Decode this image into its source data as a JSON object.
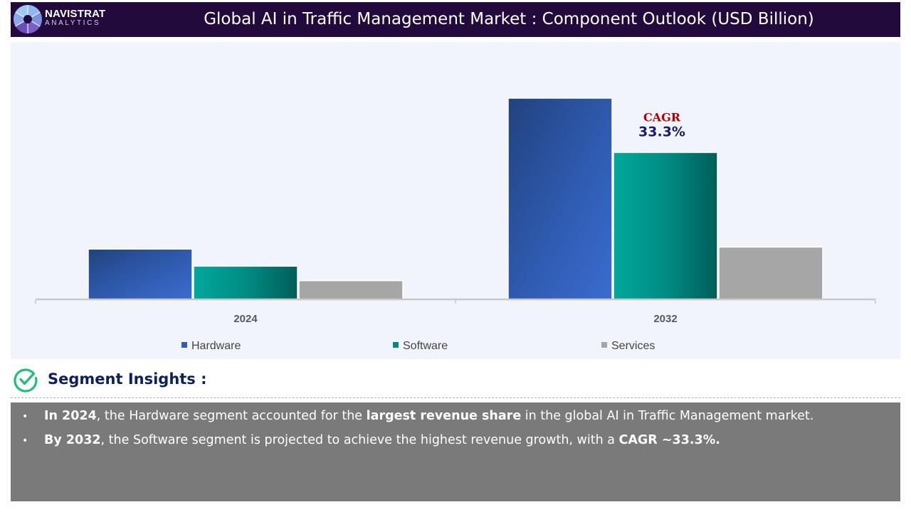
{
  "header": {
    "brand_name": "NAVISTRAT",
    "brand_sub": "ANALYTICS",
    "title": "Global AI in Traffic Management Market : Component Outlook (USD Billion)",
    "colors": {
      "header_bg": "#230a3c"
    }
  },
  "chart_data": {
    "type": "bar",
    "title": "Global AI in Traffic Management Market : Component Outlook (USD Billion)",
    "xlabel": "",
    "ylabel": "USD Billion",
    "categories": [
      "2024",
      "2032"
    ],
    "series": [
      {
        "name": "Hardware",
        "values": [
          25,
          100
        ],
        "color": "#2f5bb0"
      },
      {
        "name": "Software",
        "values": [
          16.5,
          73
        ],
        "color": "#009688"
      },
      {
        "name": "Services",
        "values": [
          9.3,
          26
        ],
        "color": "#a6a6a6"
      }
    ],
    "values_note": "No y-axis scale or data labels are shown; values are relative estimates from bar heights (2032 Hardware = 100). The Software bars imply about 20% CAGR, which does not match the printed 33.3% annotation.",
    "ylim": [
      0,
      100
    ],
    "grid": false,
    "legend": {
      "position": "bottom",
      "entries": [
        "Hardware",
        "Software",
        "Services"
      ]
    },
    "annotation": {
      "label": "CAGR",
      "value": "33.3%",
      "attached_to": "Software 2032",
      "source": "printed on chart"
    }
  },
  "insights": {
    "heading": "Segment Insights :",
    "bullets": [
      {
        "bold1": "In 2024",
        "text1": ", the Hardware segment accounted for the ",
        "bold2": "largest revenue share",
        "text2": " in the global AI in Traffic Management market."
      },
      {
        "bold1": "By 2032",
        "text1": ", the Software segment is projected to achieve the highest revenue growth, with a ",
        "bold2": "CAGR ~33.3%.",
        "text2": ""
      }
    ],
    "bullet_char": "•"
  }
}
